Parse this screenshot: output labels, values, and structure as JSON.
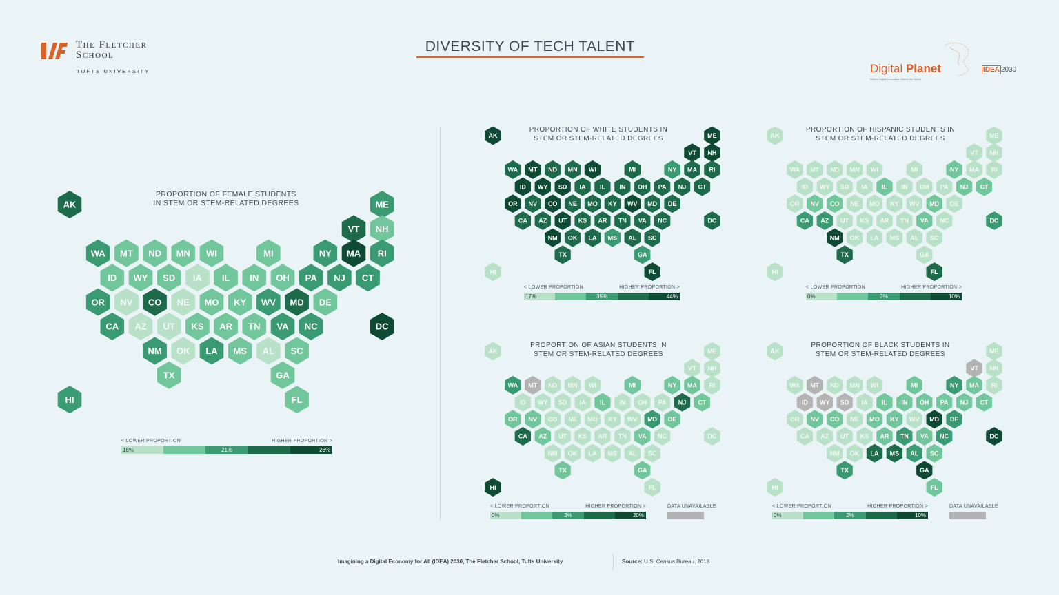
{
  "header": {
    "school_line1": "The Fletcher",
    "school_line2": "School",
    "university": "TUFTS UNIVERSITY",
    "main_title": "DIVERSITY OF TECH TALENT",
    "brand_digital": "Digital ",
    "brand_planet": "Planet",
    "brand_tagline": "Where Digital Innovation Meets the World",
    "idea_prefix": "IDEA",
    "idea_year": "2030"
  },
  "footer": {
    "citation": "Imagining a Digital Economy for All (IDEA) 2030, The Fletcher School, Tufts University",
    "source_label": "Source:",
    "source_text": "U.S. Census Bureau, 2018"
  },
  "colors": {
    "scale": [
      "#b8e1c8",
      "#72c69b",
      "#3a9b72",
      "#1e6b4c",
      "#0e4a34"
    ],
    "unavailable": "#b3b3b3",
    "accent": "#d9622b"
  },
  "chart_data": [
    {
      "type": "hex-tile-map",
      "title_line1": "PROPORTION OF FEMALE STUDENTS",
      "title_line2": "IN STEM OR STEM-RELATED DEGREES",
      "legend_low": "< LOWER PROPORTION",
      "legend_high": "HIGHER PROPORTION >",
      "scale_labels": [
        "18%",
        "21%",
        "26%"
      ],
      "data_unavailable_label": "",
      "levels": {
        "AK": 3,
        "ME": 2,
        "VT": 3,
        "NH": 1,
        "WA": 2,
        "MT": 1,
        "ND": 1,
        "MN": 1,
        "WI": 1,
        "MI": 1,
        "NY": 2,
        "MA": 4,
        "RI": 2,
        "ID": 1,
        "WY": 1,
        "SD": 1,
        "IA": 0,
        "IL": 1,
        "IN": 1,
        "OH": 1,
        "PA": 2,
        "NJ": 2,
        "CT": 2,
        "OR": 2,
        "NV": 0,
        "CO": 3,
        "NE": 0,
        "MO": 1,
        "KY": 1,
        "WV": 2,
        "MD": 3,
        "DE": 1,
        "CA": 2,
        "AZ": 0,
        "UT": 0,
        "KS": 1,
        "AR": 1,
        "TN": 1,
        "VA": 2,
        "NC": 2,
        "DC": 4,
        "NM": 2,
        "OK": 0,
        "LA": 2,
        "MS": 1,
        "AL": 0,
        "SC": 1,
        "TX": 1,
        "GA": 1,
        "HI": 2,
        "FL": 1
      }
    },
    {
      "type": "hex-tile-map",
      "title_line1": "PROPORTION OF WHITE STUDENTS IN",
      "title_line2": "STEM OR STEM-RELATED DEGREES",
      "legend_low": "< LOWER PROPORTION",
      "legend_high": "HIGHER PROPORTION >",
      "scale_labels": [
        "17%",
        "35%",
        "44%"
      ],
      "data_unavailable_label": "",
      "levels": {
        "AK": 4,
        "ME": 4,
        "VT": 4,
        "NH": 4,
        "WA": 3,
        "MT": 4,
        "ND": 3,
        "MN": 3,
        "WI": 4,
        "MI": 3,
        "NY": 2,
        "MA": 3,
        "RI": 3,
        "ID": 4,
        "WY": 4,
        "SD": 4,
        "IA": 3,
        "IL": 3,
        "IN": 3,
        "OH": 3,
        "PA": 3,
        "NJ": 3,
        "CT": 3,
        "OR": 4,
        "NV": 3,
        "CO": 4,
        "NE": 3,
        "MO": 3,
        "KY": 3,
        "WV": 4,
        "MD": 3,
        "DE": 3,
        "CA": 3,
        "AZ": 3,
        "UT": 4,
        "KS": 3,
        "AR": 3,
        "TN": 3,
        "VA": 3,
        "NC": 3,
        "DC": 3,
        "NM": 4,
        "OK": 3,
        "LA": 3,
        "MS": 2,
        "AL": 3,
        "SC": 3,
        "TX": 3,
        "GA": 2,
        "HI": 0,
        "FL": 4
      }
    },
    {
      "type": "hex-tile-map",
      "title_line1": "PROPORTION OF HISPANIC STUDENTS IN",
      "title_line2": "STEM OR STEM-RELATED DEGREES",
      "legend_low": "< LOWER PROPORTION",
      "legend_high": "HIGHER PROPORTION >",
      "scale_labels": [
        "0%",
        "2%",
        "10%"
      ],
      "data_unavailable_label": "",
      "levels": {
        "AK": 0,
        "ME": 0,
        "VT": 0,
        "NH": 0,
        "WA": 0,
        "MT": 0,
        "ND": 0,
        "MN": 0,
        "WI": 0,
        "MI": 0,
        "NY": 1,
        "MA": 0,
        "RI": 0,
        "ID": 0,
        "WY": 0,
        "SD": 0,
        "IA": 0,
        "IL": 1,
        "IN": 0,
        "OH": 0,
        "PA": 0,
        "NJ": 1,
        "CT": 1,
        "OR": 0,
        "NV": 1,
        "CO": 1,
        "NE": 0,
        "MO": 0,
        "KY": 0,
        "WV": 0,
        "MD": 1,
        "DE": 0,
        "CA": 2,
        "AZ": 2,
        "UT": 0,
        "KS": 0,
        "AR": 0,
        "TN": 0,
        "VA": 1,
        "NC": 0,
        "DC": 2,
        "NM": 4,
        "OK": 0,
        "LA": 0,
        "MS": 0,
        "AL": 0,
        "SC": 0,
        "TX": 3,
        "GA": 0,
        "HI": 0,
        "FL": 3
      }
    },
    {
      "type": "hex-tile-map",
      "title_line1": "PROPORTION OF ASIAN STUDENTS IN",
      "title_line2": "STEM OR STEM-RELATED DEGREES",
      "legend_low": "< LOWER PROPORTION",
      "legend_high": "HIGHER PROPORTION >",
      "scale_labels": [
        "0%",
        "3%",
        "20%"
      ],
      "data_unavailable_label": "DATA UNAVAILABLE",
      "levels": {
        "AK": 0,
        "ME": 0,
        "VT": 0,
        "NH": 0,
        "WA": 2,
        "MT": "na",
        "ND": 0,
        "MN": 0,
        "WI": 0,
        "MI": 1,
        "NY": 1,
        "MA": 1,
        "RI": 0,
        "ID": 0,
        "WY": 0,
        "SD": 0,
        "IA": 0,
        "IL": 1,
        "IN": 0,
        "OH": 0,
        "PA": 0,
        "NJ": 3,
        "CT": 1,
        "OR": 1,
        "NV": 1,
        "CO": 0,
        "NE": 0,
        "MO": 0,
        "KY": 0,
        "WV": 0,
        "MD": 2,
        "DE": 1,
        "CA": 3,
        "AZ": 1,
        "UT": 0,
        "KS": 0,
        "AR": 0,
        "TN": 0,
        "VA": 1,
        "NC": 0,
        "DC": 0,
        "NM": 0,
        "OK": 0,
        "LA": 0,
        "MS": 0,
        "AL": 0,
        "SC": 0,
        "TX": 1,
        "GA": 1,
        "HI": 4,
        "FL": 0
      }
    },
    {
      "type": "hex-tile-map",
      "title_line1": "PROPORTION OF BLACK STUDENTS IN",
      "title_line2": "STEM OR STEM-RELATED DEGREES",
      "legend_low": "< LOWER PROPORTION",
      "legend_high": "HIGHER PROPORTION >",
      "scale_labels": [
        "0%",
        "2%",
        "10%"
      ],
      "data_unavailable_label": "DATA UNAVAILABLE",
      "levels": {
        "AK": 0,
        "ME": 0,
        "VT": "na",
        "NH": 0,
        "WA": 0,
        "MT": "na",
        "ND": 0,
        "MN": 0,
        "WI": 0,
        "MI": 1,
        "NY": 2,
        "MA": 1,
        "RI": 0,
        "ID": "na",
        "WY": "na",
        "SD": "na",
        "IA": 0,
        "IL": 1,
        "IN": 1,
        "OH": 1,
        "PA": 1,
        "NJ": 1,
        "CT": 1,
        "OR": 0,
        "NV": 1,
        "CO": 1,
        "NE": 0,
        "MO": 1,
        "KY": 1,
        "WV": 0,
        "MD": 4,
        "DE": 2,
        "CA": 0,
        "AZ": 0,
        "UT": 0,
        "KS": 0,
        "AR": 1,
        "TN": 2,
        "VA": 1,
        "NC": 2,
        "DC": 4,
        "NM": 0,
        "OK": 0,
        "LA": 3,
        "MS": 3,
        "AL": 2,
        "SC": 1,
        "TX": 2,
        "GA": 4,
        "HI": 0,
        "FL": 1
      }
    }
  ]
}
